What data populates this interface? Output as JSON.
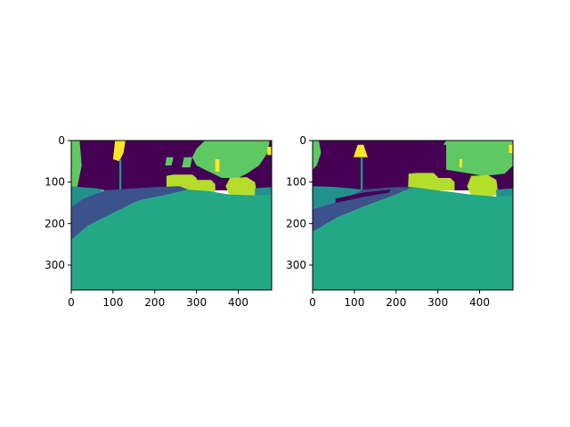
{
  "chart_data": [
    {
      "type": "heatmap",
      "title": "",
      "xlabel": "",
      "ylabel": "",
      "xlim": [
        0,
        480
      ],
      "ylim": [
        360,
        0
      ],
      "x_ticks": [
        0,
        100,
        200,
        300,
        400
      ],
      "y_ticks": [
        0,
        100,
        200,
        300
      ],
      "colormap": "viridis",
      "palette": {
        "c0": "#440154",
        "c1": "#3b528b",
        "c2": "#21918c",
        "c3": "#22a884",
        "c4": "#5ec962",
        "c5": "#b5de2b",
        "c6": "#fde725"
      },
      "regions": [
        {
          "name": "sky",
          "class": "c0",
          "points": [
            [
              0,
              0
            ],
            [
              480,
              0
            ],
            [
              480,
              120
            ],
            [
              0,
              120
            ]
          ]
        },
        {
          "name": "tree-left",
          "class": "c4",
          "points": [
            [
              0,
              0
            ],
            [
              20,
              0
            ],
            [
              25,
              60
            ],
            [
              15,
              110
            ],
            [
              0,
              120
            ]
          ]
        },
        {
          "name": "tree-right",
          "class": "c4",
          "points": [
            [
              320,
              0
            ],
            [
              475,
              0
            ],
            [
              470,
              30
            ],
            [
              450,
              60
            ],
            [
              420,
              80
            ],
            [
              400,
              90
            ],
            [
              360,
              90
            ],
            [
              340,
              80
            ],
            [
              320,
              70
            ],
            [
              300,
              60
            ],
            [
              290,
              40
            ],
            [
              300,
              20
            ]
          ]
        },
        {
          "name": "building-right",
          "class": "c0",
          "points": [
            [
              460,
              60
            ],
            [
              480,
              60
            ],
            [
              480,
              120
            ],
            [
              460,
              120
            ]
          ]
        },
        {
          "name": "bush-mid",
          "class": "c4",
          "points": [
            [
              270,
              40
            ],
            [
              290,
              40
            ],
            [
              285,
              65
            ],
            [
              265,
              65
            ]
          ]
        },
        {
          "name": "bush-small",
          "class": "c4",
          "points": [
            [
              228,
              40
            ],
            [
              245,
              40
            ],
            [
              240,
              60
            ],
            [
              225,
              60
            ]
          ]
        },
        {
          "name": "dark-post",
          "class": "c0",
          "points": [
            [
              85,
              30
            ],
            [
              105,
              30
            ],
            [
              105,
              110
            ],
            [
              85,
              110
            ]
          ]
        },
        {
          "name": "sign",
          "class": "c6",
          "points": [
            [
              105,
              0
            ],
            [
              130,
              0
            ],
            [
              125,
              30
            ],
            [
              115,
              50
            ],
            [
              100,
              45
            ]
          ]
        },
        {
          "name": "pole",
          "class": "c2",
          "points": [
            [
              115,
              45
            ],
            [
              120,
              45
            ],
            [
              120,
              140
            ],
            [
              115,
              140
            ]
          ]
        },
        {
          "name": "sign-small-a",
          "class": "c6",
          "points": [
            [
              345,
              45
            ],
            [
              355,
              45
            ],
            [
              355,
              75
            ],
            [
              345,
              75
            ]
          ]
        },
        {
          "name": "sign-small-b",
          "class": "c6",
          "points": [
            [
              470,
              15
            ],
            [
              480,
              15
            ],
            [
              480,
              35
            ],
            [
              470,
              35
            ]
          ]
        },
        {
          "name": "car-1",
          "class": "c5",
          "points": [
            [
              228,
              85
            ],
            [
              245,
              82
            ],
            [
              290,
              82
            ],
            [
              300,
              90
            ],
            [
              305,
              105
            ],
            [
              305,
              130
            ],
            [
              290,
              138
            ],
            [
              240,
              138
            ],
            [
              228,
              130
            ]
          ]
        },
        {
          "name": "car-2",
          "class": "c5",
          "points": [
            [
              300,
              95
            ],
            [
              335,
              95
            ],
            [
              345,
              105
            ],
            [
              345,
              125
            ],
            [
              300,
              125
            ]
          ]
        },
        {
          "name": "car-3",
          "class": "c5",
          "points": [
            [
              380,
              90
            ],
            [
              420,
              88
            ],
            [
              440,
              100
            ],
            [
              445,
              130
            ],
            [
              425,
              140
            ],
            [
              380,
              135
            ],
            [
              370,
              110
            ]
          ]
        },
        {
          "name": "sidewalk-left",
          "class": "c2",
          "points": [
            [
              0,
              110
            ],
            [
              20,
              112
            ],
            [
              60,
              115
            ],
            [
              80,
              118
            ],
            [
              30,
              145
            ],
            [
              0,
              160
            ]
          ]
        },
        {
          "name": "road-band",
          "class": "c1",
          "points": [
            [
              0,
              160
            ],
            [
              30,
              140
            ],
            [
              80,
              120
            ],
            [
              200,
              112
            ],
            [
              260,
              110
            ],
            [
              280,
              118
            ],
            [
              230,
              130
            ],
            [
              160,
              145
            ],
            [
              90,
              180
            ],
            [
              40,
              205
            ],
            [
              0,
              240
            ]
          ]
        },
        {
          "name": "vegetation-right-edge",
          "class": "c2",
          "points": [
            [
              440,
              115
            ],
            [
              480,
              112
            ],
            [
              480,
              135
            ],
            [
              440,
              135
            ]
          ]
        },
        {
          "name": "ground",
          "class": "c3",
          "points": [
            [
              0,
              240
            ],
            [
              40,
              205
            ],
            [
              90,
              180
            ],
            [
              160,
              145
            ],
            [
              230,
              130
            ],
            [
              280,
              118
            ],
            [
              330,
              122
            ],
            [
              380,
              130
            ],
            [
              440,
              132
            ],
            [
              480,
              130
            ],
            [
              480,
              360
            ],
            [
              0,
              360
            ]
          ]
        }
      ]
    },
    {
      "type": "heatmap",
      "title": "",
      "xlabel": "",
      "ylabel": "",
      "xlim": [
        0,
        480
      ],
      "ylim": [
        360,
        0
      ],
      "x_ticks": [
        0,
        100,
        200,
        300,
        400
      ],
      "y_ticks": [
        0,
        100,
        200,
        300
      ],
      "colormap": "viridis",
      "palette": {
        "c0": "#440154",
        "c1": "#3b528b",
        "c2": "#21918c",
        "c3": "#22a884",
        "c4": "#5ec962",
        "c5": "#b5de2b",
        "c6": "#fde725"
      },
      "regions": [
        {
          "name": "sky",
          "class": "c0",
          "points": [
            [
              0,
              0
            ],
            [
              480,
              0
            ],
            [
              480,
              120
            ],
            [
              0,
              120
            ]
          ]
        },
        {
          "name": "tree-left",
          "class": "c4",
          "points": [
            [
              0,
              0
            ],
            [
              15,
              0
            ],
            [
              20,
              30
            ],
            [
              10,
              60
            ],
            [
              0,
              70
            ]
          ]
        },
        {
          "name": "tree-right",
          "class": "c4",
          "points": [
            [
              320,
              0
            ],
            [
              480,
              0
            ],
            [
              480,
              60
            ],
            [
              460,
              80
            ],
            [
              410,
              85
            ],
            [
              380,
              80
            ],
            [
              350,
              75
            ],
            [
              320,
              70
            ],
            [
              300,
              60
            ],
            [
              300,
              30
            ]
          ]
        },
        {
          "name": "building-mid",
          "class": "c0",
          "points": [
            [
              280,
              10
            ],
            [
              320,
              10
            ],
            [
              320,
              90
            ],
            [
              280,
              90
            ]
          ]
        },
        {
          "name": "tall-post",
          "class": "c0",
          "points": [
            [
              82,
              30
            ],
            [
              108,
              30
            ],
            [
              108,
              110
            ],
            [
              82,
              110
            ]
          ]
        },
        {
          "name": "sign",
          "class": "c6",
          "points": [
            [
              108,
              10
            ],
            [
              122,
              10
            ],
            [
              132,
              40
            ],
            [
              98,
              40
            ]
          ]
        },
        {
          "name": "pole",
          "class": "c2",
          "points": [
            [
              115,
              40
            ],
            [
              120,
              40
            ],
            [
              120,
              120
            ],
            [
              115,
              120
            ]
          ]
        },
        {
          "name": "sign-small-a",
          "class": "c6",
          "points": [
            [
              352,
              45
            ],
            [
              358,
              45
            ],
            [
              358,
              65
            ],
            [
              352,
              65
            ]
          ]
        },
        {
          "name": "sign-small-b",
          "class": "c6",
          "points": [
            [
              470,
              10
            ],
            [
              480,
              10
            ],
            [
              480,
              30
            ],
            [
              470,
              30
            ]
          ]
        },
        {
          "name": "car-1",
          "class": "c5",
          "points": [
            [
              230,
              80
            ],
            [
              250,
              78
            ],
            [
              290,
              78
            ],
            [
              300,
              88
            ],
            [
              305,
              100
            ],
            [
              305,
              140
            ],
            [
              290,
              140
            ],
            [
              240,
              140
            ],
            [
              228,
              132
            ]
          ]
        },
        {
          "name": "car-2",
          "class": "c5",
          "points": [
            [
              300,
              90
            ],
            [
              330,
              90
            ],
            [
              340,
              100
            ],
            [
              340,
              120
            ],
            [
              300,
              120
            ]
          ]
        },
        {
          "name": "car-3",
          "class": "c5",
          "points": [
            [
              380,
              85
            ],
            [
              420,
              83
            ],
            [
              440,
              95
            ],
            [
              445,
              130
            ],
            [
              420,
              135
            ],
            [
              380,
              132
            ],
            [
              370,
              110
            ]
          ]
        },
        {
          "name": "sidewalk-left",
          "class": "c2",
          "points": [
            [
              0,
              110
            ],
            [
              60,
              112
            ],
            [
              120,
              118
            ],
            [
              50,
              150
            ],
            [
              0,
              165
            ]
          ]
        },
        {
          "name": "road-band",
          "class": "c1",
          "points": [
            [
              0,
              165
            ],
            [
              50,
              150
            ],
            [
              120,
              118
            ],
            [
              200,
              112
            ],
            [
              240,
              112
            ],
            [
              200,
              130
            ],
            [
              120,
              160
            ],
            [
              60,
              185
            ],
            [
              0,
              220
            ]
          ]
        },
        {
          "name": "bollards",
          "class": "c0",
          "points": [
            [
              55,
              140
            ],
            [
              125,
              125
            ],
            [
              185,
              118
            ],
            [
              185,
              125
            ],
            [
              125,
              135
            ],
            [
              55,
              150
            ]
          ]
        },
        {
          "name": "vegetation-right-edge",
          "class": "c2",
          "points": [
            [
              440,
              118
            ],
            [
              480,
              115
            ],
            [
              480,
              138
            ],
            [
              440,
              138
            ]
          ]
        },
        {
          "name": "ground",
          "class": "c3",
          "points": [
            [
              0,
              220
            ],
            [
              60,
              185
            ],
            [
              120,
              160
            ],
            [
              200,
              130
            ],
            [
              240,
              112
            ],
            [
              300,
              120
            ],
            [
              380,
              130
            ],
            [
              440,
              135
            ],
            [
              480,
              132
            ],
            [
              480,
              360
            ],
            [
              0,
              360
            ]
          ]
        }
      ]
    }
  ]
}
